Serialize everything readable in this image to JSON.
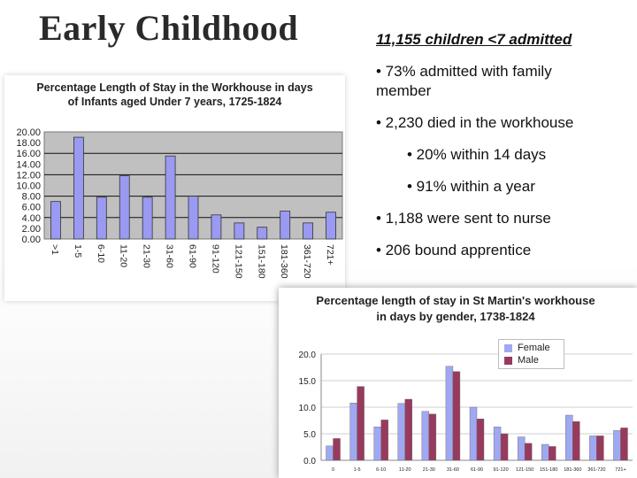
{
  "slide": {
    "title": "Early Childhood",
    "summary_heading": "11,155 children <7 admitted",
    "bullets": [
      "• 73% admitted with family member",
      "• 2,230 died in the workhouse",
      "• 20% within 14 days",
      "• 91% within a year",
      "• 1,188 were sent to nurse",
      "• 206 bound apprentice"
    ]
  },
  "colors": {
    "bar_blue": "#9a9af2",
    "plot_bg": "#c0c0c0",
    "female": "#9fa8f0",
    "male": "#983a5e"
  },
  "chart_data": [
    {
      "type": "bar",
      "title": "Percentage Length of Stay in the Workhouse in days of Infants aged Under 7 years, 1725-1824",
      "title_lines": [
        "Percentage Length of Stay in the Workhouse in days",
        "of Infants aged Under 7 years, 1725-1824"
      ],
      "categories": [
        ">1",
        "1-5",
        "6-10",
        "11-20",
        "21-30",
        "31-60",
        "61-90",
        "91-120",
        "121-150",
        "151-180",
        "181-360",
        "361-720",
        "721+"
      ],
      "values": [
        7.0,
        19.0,
        7.8,
        11.8,
        7.8,
        15.5,
        8.0,
        4.5,
        3.0,
        2.2,
        5.2,
        3.0,
        5.0
      ],
      "ylim": [
        0,
        20
      ],
      "yticks": [
        "0.00",
        "2.00",
        "4.00",
        "6.00",
        "8.00",
        "10.00",
        "12.00",
        "14.00",
        "16.00",
        "18.00",
        "20.00"
      ],
      "grid": true,
      "xlabel": "",
      "ylabel": ""
    },
    {
      "type": "bar",
      "title": "Percentage length of stay in St Martin's workhouse in days by gender, 1738-1824",
      "title_lines": [
        "Percentage length of stay in St Martin's workhouse",
        "in days by gender, 1738-1824"
      ],
      "categories": [
        "0",
        "1-5",
        "6-10",
        "11-20",
        "21-30",
        "31-60",
        "61-90",
        "91-120",
        "121-150",
        "151-180",
        "181-360",
        "361-720",
        "721+"
      ],
      "series": [
        {
          "name": "Female",
          "values": [
            2.7,
            10.8,
            6.3,
            10.7,
            9.2,
            17.7,
            10.0,
            6.3,
            4.4,
            3.0,
            8.5,
            4.6,
            5.6
          ]
        },
        {
          "name": "Male",
          "values": [
            4.1,
            13.9,
            7.6,
            11.5,
            8.7,
            16.7,
            7.8,
            5.0,
            3.2,
            2.6,
            7.3,
            4.6,
            6.1
          ]
        }
      ],
      "ylim": [
        0,
        20
      ],
      "yticks": [
        "0.0",
        "5.0",
        "10.0",
        "15.0",
        "20.0"
      ],
      "legend": "top-right",
      "grid": true,
      "xlabel": "",
      "ylabel": ""
    }
  ]
}
